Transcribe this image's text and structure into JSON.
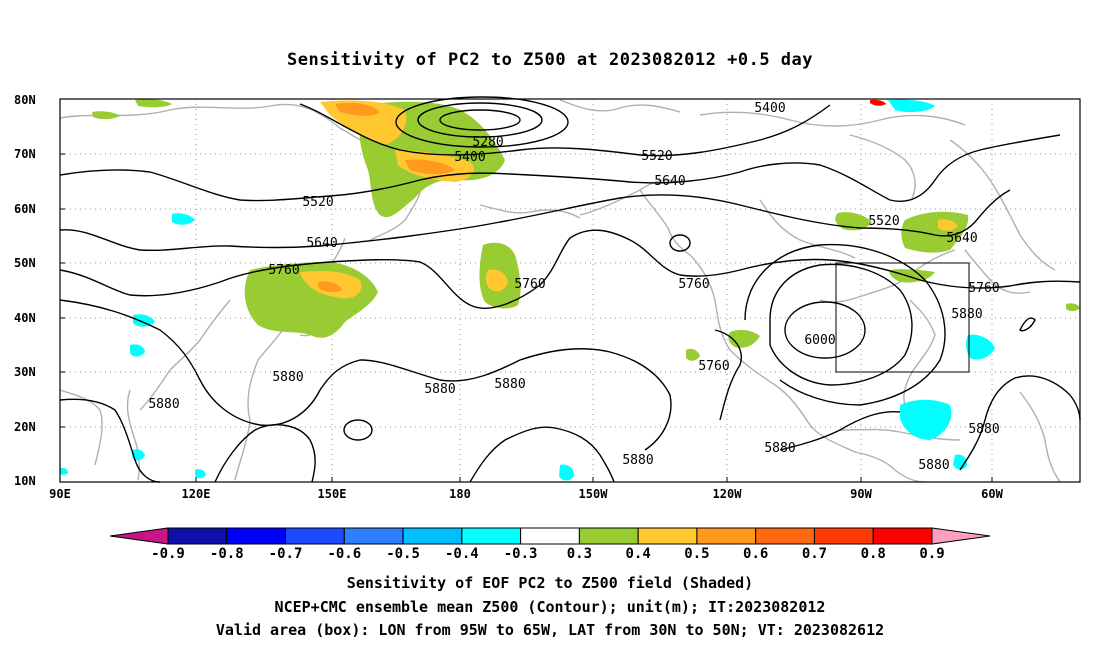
{
  "title": "Sensitivity of PC2 to Z500 at 2023082012 +0.5 day",
  "lat_labels": [
    "80N",
    "70N",
    "60N",
    "50N",
    "40N",
    "30N",
    "20N",
    "10N"
  ],
  "lon_labels": [
    "90E",
    "120E",
    "150E",
    "180",
    "150W",
    "120W",
    "90W",
    "60W"
  ],
  "contour_labels": [
    "5400",
    "5280",
    "5400",
    "5520",
    "5640",
    "5520",
    "5640",
    "5760",
    "5760",
    "5760",
    "5520",
    "5640",
    "5760",
    "5880",
    "6000",
    "5760",
    "5880",
    "5880",
    "5880",
    "5880",
    "5880",
    "5880",
    "5880",
    "5880"
  ],
  "colorbar": {
    "labels": [
      "-0.9",
      "-0.8",
      "-0.7",
      "-0.6",
      "-0.5",
      "-0.4",
      "-0.3",
      "0.3",
      "0.4",
      "0.5",
      "0.6",
      "0.7",
      "0.8",
      "0.9"
    ],
    "colors": [
      "#0e0ea8",
      "#0000ff",
      "#1e4bff",
      "#2e7fff",
      "#00bfff",
      "#00ffff",
      "#ffffff",
      "#99cc33",
      "#ffc830",
      "#ff9a1e",
      "#ff6a10",
      "#ff3a00",
      "#ff0000"
    ],
    "low_arrow_color": "#c71585",
    "high_arrow_color": "#ff9fc0"
  },
  "footer": {
    "line1": "Sensitivity of EOF PC2 to Z500 field (Shaded)",
    "line2": "NCEP+CMC ensemble mean Z500 (Contour); unit(m); IT:2023082012",
    "line3": "Valid area (box): LON from 95W to 65W, LAT from 30N to 50N; VT: 2023082612"
  }
}
